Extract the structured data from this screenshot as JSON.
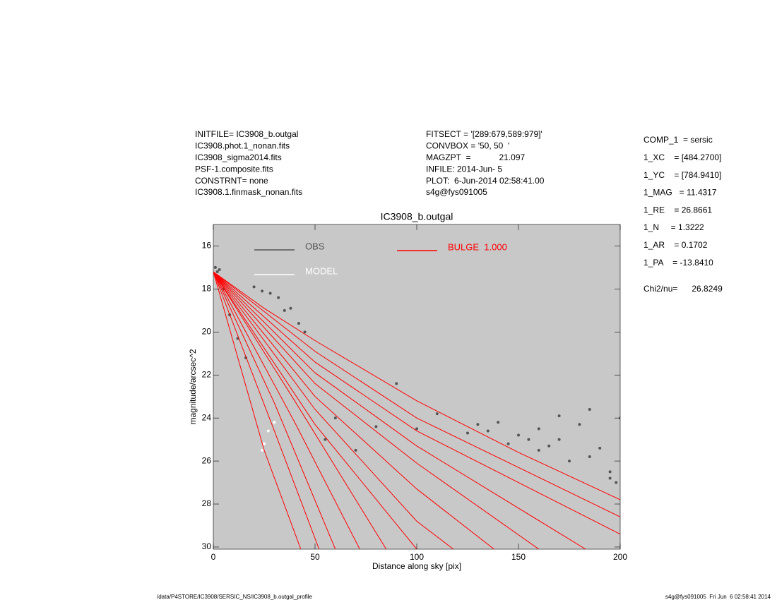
{
  "header": {
    "left": [
      "INITFILE= IC3908_b.outgal",
      "IC3908.phot.1_nonan.fits",
      "IC3908_sigma2014.fits",
      "PSF-1.composite.fits",
      "CONSTRNT= none",
      "IC3908.1.finmask_nonan.fits"
    ],
    "middle": [
      "FITSECT = '[289:679,589:979]'",
      "CONVBOX = '50, 50  '",
      "MAGZPT  =            21.097",
      "INFILE: 2014-Jun- 5",
      "PLOT:  6-Jun-2014 02:58:41.00",
      "s4g@fys091005"
    ],
    "params": [
      "COMP_1  = sersic",
      "1_XC    = [484.2700]",
      "1_YC    = [784.9410]",
      "1_MAG   = 11.4317",
      "1_RE    = 26.8661",
      "1_N     = 1.3222",
      "1_AR    = 0.1702",
      "1_PA    = -13.8410",
      "Chi2/nu=      26.8249"
    ]
  },
  "footer": {
    "left": "/data/P4STORE/IC3908/SERSIC_NS/IC3908_b.outgal_profile",
    "right": "s4g@fys091005  Fri Jun  6 02:58:41 2014"
  },
  "chart_data": {
    "type": "scatter",
    "title": "IC3908_b.outgal",
    "xlabel": "Distance along sky [pix]",
    "ylabel": "magnitude/arcsec^2",
    "xlim": [
      0,
      200
    ],
    "ylim": [
      30.1,
      15
    ],
    "xticks": [
      0,
      50,
      100,
      150,
      200
    ],
    "yticks": [
      16,
      18,
      20,
      22,
      24,
      26,
      28,
      30
    ],
    "background": "#c8c8c8",
    "series": [
      {
        "name": "OBS",
        "color": "#555555",
        "mode": "points",
        "x": [
          1,
          2,
          3,
          5,
          8,
          12,
          16,
          20,
          24,
          28,
          32,
          35,
          38,
          42,
          45,
          55,
          60,
          70,
          80,
          90,
          100,
          110,
          125,
          130,
          135,
          140,
          145,
          150,
          155,
          160,
          165,
          170,
          175,
          180,
          185,
          190,
          195,
          200,
          170,
          185,
          195,
          160,
          198
        ],
        "values": [
          17.0,
          17.2,
          17.1,
          18.0,
          19.2,
          20.3,
          21.2,
          17.9,
          18.1,
          18.2,
          18.4,
          19.0,
          18.9,
          19.6,
          20.0,
          25.0,
          24.0,
          25.5,
          24.4,
          22.4,
          24.5,
          23.8,
          24.7,
          24.3,
          24.6,
          24.2,
          25.2,
          24.8,
          25.0,
          24.5,
          25.3,
          25.0,
          26.0,
          24.3,
          25.8,
          25.4,
          26.8,
          24.0,
          23.9,
          23.6,
          26.5,
          25.5,
          27.0
        ]
      },
      {
        "name": "MODEL",
        "color": "#ffffff",
        "mode": "points",
        "x": [
          24,
          25,
          27,
          30
        ],
        "values": [
          25.5,
          25.2,
          24.6,
          24.2
        ]
      },
      {
        "name": "BULGE  1.000",
        "color": "#ff0000",
        "mode": "lines",
        "traces": [
          {
            "x": [
              0,
              25,
              50,
              100,
              150,
              200
            ],
            "values": [
              17.2,
              18.9,
              20.4,
              23.2,
              25.6,
              27.8
            ]
          },
          {
            "x": [
              0,
              50,
              100,
              200
            ],
            "values": [
              17.2,
              20.9,
              24.0,
              28.6
            ]
          },
          {
            "x": [
              0,
              50,
              100,
              200
            ],
            "values": [
              17.2,
              21.4,
              24.6,
              29.4
            ]
          },
          {
            "x": [
              0,
              50,
              100,
              183
            ],
            "values": [
              17.2,
              21.9,
              25.3,
              30.1
            ]
          },
          {
            "x": [
              0,
              50,
              100,
              160
            ],
            "values": [
              17.2,
              22.4,
              26.1,
              30.1
            ]
          },
          {
            "x": [
              0,
              50,
              100,
              138
            ],
            "values": [
              17.2,
              23.0,
              27.3,
              30.1
            ]
          },
          {
            "x": [
              0,
              50,
              100,
              118
            ],
            "values": [
              17.2,
              23.6,
              28.8,
              30.1
            ]
          },
          {
            "x": [
              0,
              50,
              100
            ],
            "values": [
              17.2,
              24.3,
              30.1
            ]
          },
          {
            "x": [
              0,
              40,
              85
            ],
            "values": [
              17.2,
              23.2,
              30.1
            ]
          },
          {
            "x": [
              0,
              40,
              72
            ],
            "values": [
              17.2,
              24.2,
              30.1
            ]
          },
          {
            "x": [
              0,
              30,
              60
            ],
            "values": [
              17.2,
              23.3,
              30.1
            ]
          },
          {
            "x": [
              0,
              30,
              52
            ],
            "values": [
              17.2,
              24.6,
              30.1
            ]
          },
          {
            "x": [
              0,
              25,
              43
            ],
            "values": [
              17.2,
              25.5,
              30.1
            ]
          }
        ]
      }
    ]
  }
}
